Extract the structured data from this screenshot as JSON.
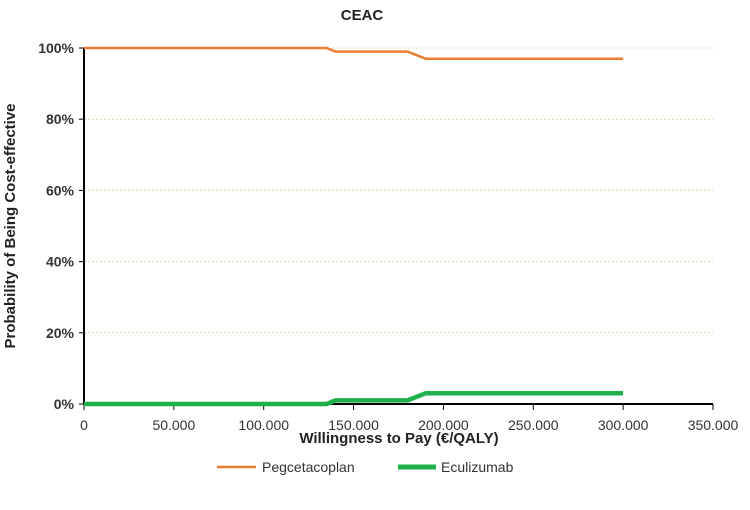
{
  "chart_data": {
    "type": "line",
    "title": "CEAC",
    "xlabel": "Willingness to Pay (€/QALY)",
    "ylabel": "Probability of Being Cost-effective",
    "xlim": [
      0,
      350000
    ],
    "ylim": [
      0,
      1
    ],
    "x_ticks": [
      0,
      50000,
      100000,
      150000,
      200000,
      250000,
      300000,
      350000
    ],
    "x_tick_labels": [
      "0",
      "50.000",
      "100.000",
      "150.000",
      "200.000",
      "250.000",
      "300.000",
      "350.000"
    ],
    "y_ticks": [
      0,
      0.2,
      0.4,
      0.6,
      0.8,
      1.0
    ],
    "y_tick_labels": [
      "0%",
      "20%",
      "40%",
      "60%",
      "80%",
      "100%"
    ],
    "grid": "horizontal, dashed",
    "legend_placement": "bottom",
    "series": [
      {
        "name": "Pegcetacoplan",
        "color": "#ed7d31",
        "x": [
          0,
          135000,
          140000,
          180000,
          190000,
          300000
        ],
        "y": [
          1.0,
          1.0,
          0.99,
          0.99,
          0.97,
          0.97
        ]
      },
      {
        "name": "Eculizumab",
        "color": "#1fb04b",
        "x": [
          0,
          135000,
          140000,
          180000,
          190000,
          300000
        ],
        "y": [
          0.0,
          0.0,
          0.01,
          0.01,
          0.03,
          0.03
        ]
      }
    ]
  }
}
